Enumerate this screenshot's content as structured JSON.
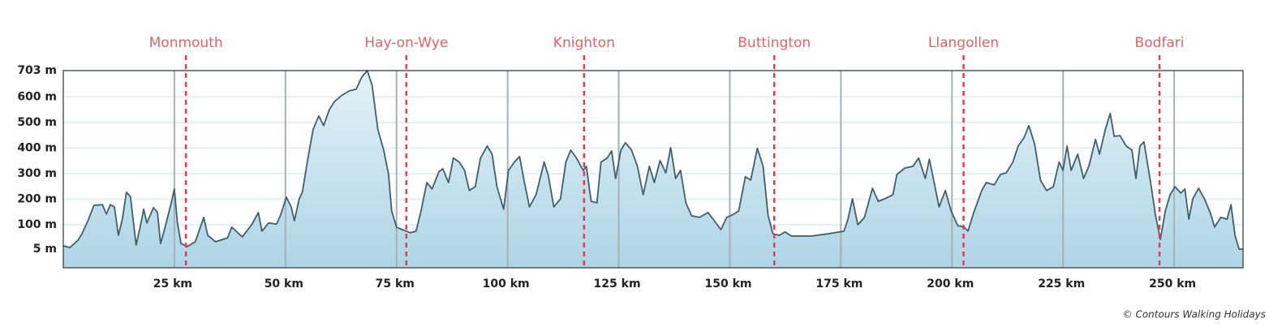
{
  "chart_data": {
    "type": "area",
    "x": [
      0,
      1.5,
      3.3,
      4.2,
      5.7,
      6.9,
      8.8,
      9.7,
      10.6,
      11.5,
      12.4,
      13.3,
      14.2,
      15.1,
      16.4,
      17.3,
      18.1,
      18.8,
      20.3,
      21.2,
      21.9,
      23.0,
      24.3,
      25.0,
      25.7,
      26.5,
      27.9,
      29.7,
      31.6,
      32.5,
      34.3,
      37.0,
      37.9,
      38.9,
      40.3,
      42.5,
      43.9,
      44.7,
      46.2,
      48.0,
      48.9,
      50.2,
      51.3,
      52.0,
      53.1,
      53.8,
      54.9,
      56.2,
      57.5,
      58.6,
      59.9,
      61.1,
      62.6,
      64.4,
      65.9,
      67.2,
      68.4,
      69.5,
      70.8,
      72.1,
      73.2,
      73.9,
      75.0,
      76.3,
      78.1,
      79.4,
      80.5,
      81.8,
      83.0,
      84.5,
      85.4,
      86.7,
      87.8,
      89.1,
      90.3,
      91.4,
      92.7,
      93.9,
      95.4,
      96.5,
      97.6,
      99.1,
      100.2,
      101.5,
      102.7,
      103.6,
      104.9,
      106.4,
      108.2,
      109.1,
      110.4,
      111.9,
      113.1,
      114.2,
      115.5,
      117.0,
      117.7,
      118.8,
      120.1,
      121.0,
      122.4,
      123.4,
      124.3,
      125.5,
      126.5,
      127.9,
      129.2,
      130.5,
      131.9,
      133.0,
      134.3,
      135.6,
      136.7,
      137.8,
      138.9,
      140.1,
      141.4,
      143.2,
      145.1,
      146.5,
      148.0,
      149.3,
      150.5,
      152.0,
      153.5,
      154.7,
      156.2,
      157.5,
      158.6,
      159.7,
      161.1,
      162.4,
      163.9,
      168.4,
      172.1,
      175.7,
      176.6,
      177.6,
      178.8,
      180.3,
      182.1,
      183.4,
      184.9,
      186.7,
      187.6,
      189.4,
      191.2,
      192.5,
      194.0,
      194.9,
      195.8,
      197.1,
      198.5,
      199.8,
      201.3,
      202.7,
      203.6,
      204.9,
      206.7,
      207.7,
      209.5,
      210.9,
      212.2,
      213.7,
      214.9,
      216.2,
      217.3,
      218.6,
      219.9,
      221.3,
      222.8,
      224.1,
      225.0,
      225.9,
      226.8,
      228.3,
      229.6,
      230.8,
      232.3,
      233.2,
      234.5,
      235.6,
      236.5,
      237.8,
      239.2,
      240.5,
      241.4,
      242.3,
      243.2,
      244.7,
      245.8,
      246.9,
      248.0,
      249.1,
      250.2,
      251.5,
      252.4,
      253.3,
      254.2,
      255.5,
      256.8,
      258.1,
      259.1,
      260.5,
      261.9,
      262.8,
      263.7,
      264.6,
      265.5
    ],
    "values": [
      18,
      11,
      40,
      65,
      122,
      176,
      179,
      142,
      179,
      170,
      59,
      122,
      227,
      211,
      21,
      91,
      161,
      107,
      167,
      148,
      27,
      97,
      186,
      240,
      107,
      27,
      15,
      34,
      129,
      59,
      34,
      49,
      91,
      75,
      53,
      103,
      148,
      75,
      107,
      103,
      138,
      208,
      170,
      116,
      202,
      227,
      345,
      472,
      526,
      488,
      551,
      583,
      605,
      624,
      630,
      678,
      703,
      646,
      472,
      392,
      297,
      154,
      91,
      81,
      69,
      75,
      154,
      265,
      240,
      307,
      319,
      265,
      361,
      345,
      313,
      234,
      249,
      361,
      408,
      376,
      249,
      161,
      313,
      345,
      367,
      281,
      170,
      218,
      345,
      297,
      170,
      202,
      345,
      392,
      361,
      313,
      329,
      192,
      186,
      345,
      361,
      389,
      281,
      392,
      421,
      392,
      329,
      218,
      329,
      265,
      351,
      303,
      402,
      281,
      313,
      186,
      135,
      129,
      148,
      116,
      81,
      129,
      138,
      154,
      288,
      275,
      399,
      329,
      138,
      65,
      59,
      72,
      56,
      56,
      65,
      75,
      122,
      202,
      100,
      129,
      243,
      192,
      202,
      218,
      297,
      322,
      329,
      361,
      281,
      357,
      281,
      170,
      234,
      154,
      97,
      91,
      75,
      148,
      234,
      265,
      256,
      297,
      303,
      345,
      408,
      440,
      488,
      415,
      275,
      234,
      249,
      345,
      313,
      408,
      313,
      376,
      281,
      329,
      434,
      376,
      472,
      535,
      446,
      449,
      408,
      392,
      281,
      408,
      424,
      265,
      138,
      43,
      154,
      218,
      249,
      224,
      240,
      122,
      202,
      243,
      202,
      148,
      91,
      129,
      122,
      179,
      59,
      5,
      5
    ],
    "color": "#3f5f6b",
    "xlim": [
      0,
      265.5
    ],
    "ylim": [
      -68,
      703
    ],
    "xticks": [
      {
        "value": 25,
        "label": "25 km"
      },
      {
        "value": 50,
        "label": "50 km"
      },
      {
        "value": 75,
        "label": "75 km"
      },
      {
        "value": 100,
        "label": "100 km"
      },
      {
        "value": 125,
        "label": "125 km"
      },
      {
        "value": 150,
        "label": "150 km"
      },
      {
        "value": 175,
        "label": "175 km"
      },
      {
        "value": 200,
        "label": "200 km"
      },
      {
        "value": 225,
        "label": "225 km"
      },
      {
        "value": 250,
        "label": "250 km"
      }
    ],
    "yticks": [
      {
        "value": 5,
        "label": "5 m"
      },
      {
        "value": 100,
        "label": "100 m"
      },
      {
        "value": 200,
        "label": "200 m"
      },
      {
        "value": 300,
        "label": "300 m"
      },
      {
        "value": 400,
        "label": "400 m"
      },
      {
        "value": 500,
        "label": "500 m"
      },
      {
        "value": 600,
        "label": "600 m"
      },
      {
        "value": 703,
        "label": "703 m"
      }
    ],
    "grid": true,
    "markers": [
      {
        "label": "Monmouth",
        "x": 27.6
      },
      {
        "label": "Hay-on-Wye",
        "x": 77.2
      },
      {
        "label": "Knighton",
        "x": 117.2
      },
      {
        "label": "Buttington",
        "x": 160.0
      },
      {
        "label": "Llangollen",
        "x": 202.6
      },
      {
        "label": "Bodfari",
        "x": 246.7
      }
    ],
    "marker_color": "#e0404e",
    "credit": "© Contours Walking Holidays"
  }
}
